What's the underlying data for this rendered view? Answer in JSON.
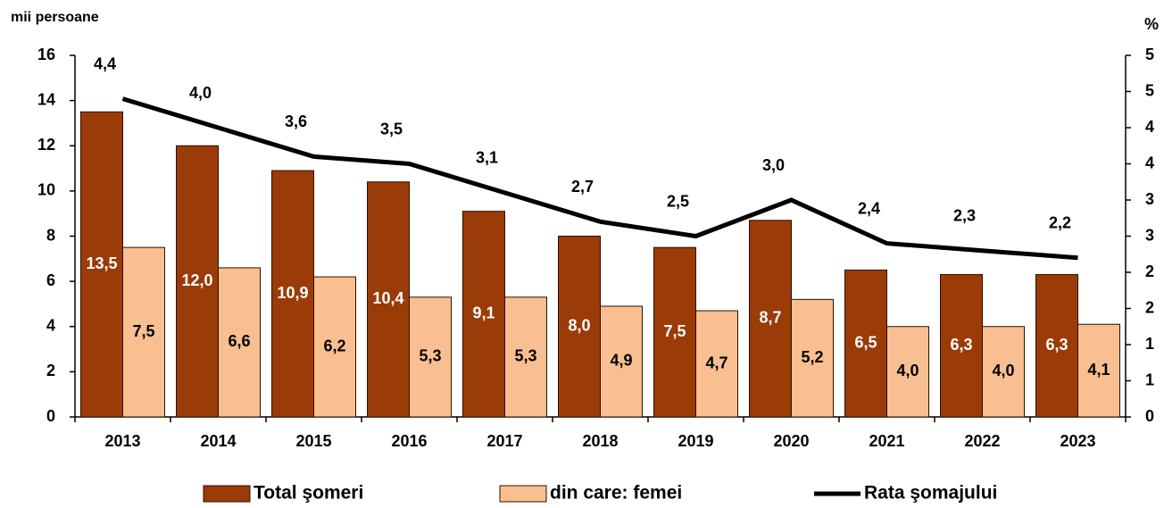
{
  "chart_data": {
    "type": "bar-line",
    "ylabel": "mii persoane",
    "y2label": "%",
    "categories": [
      "2013",
      "2014",
      "2015",
      "2016",
      "2017",
      "2018",
      "2019",
      "2020",
      "2021",
      "2022",
      "2023"
    ],
    "series": [
      {
        "name": "Total şomeri",
        "color": "#9a3b08",
        "type": "bar",
        "values": [
          13.5,
          12.0,
          10.9,
          10.4,
          9.1,
          8.0,
          7.5,
          8.7,
          6.5,
          6.3,
          6.3
        ],
        "value_labels": [
          "13,5",
          "12,0",
          "10,9",
          "10,4",
          "9,1",
          "8,0",
          "7,5",
          "8,7",
          "6,5",
          "6,3",
          "6,3"
        ]
      },
      {
        "name": "din care: femei",
        "color": "#f9bf90",
        "type": "bar",
        "values": [
          7.5,
          6.6,
          6.2,
          5.3,
          5.3,
          4.9,
          4.7,
          5.2,
          4.0,
          4.0,
          4.1
        ],
        "value_labels": [
          "7,5",
          "6,6",
          "6,2",
          "5,3",
          "5,3",
          "4,9",
          "4,7",
          "5,2",
          "4,0",
          "4,0",
          "4,1"
        ]
      },
      {
        "name": "Rata şomajului",
        "color": "#000000",
        "type": "line",
        "axis": "y2",
        "values": [
          4.4,
          4.0,
          3.6,
          3.5,
          3.1,
          2.7,
          2.5,
          3.0,
          2.4,
          2.3,
          2.2
        ],
        "value_labels": [
          "4,4",
          "4,0",
          "3,6",
          "3,5",
          "3,1",
          "2,7",
          "2,5",
          "3,0",
          "2,4",
          "2,3",
          "2,2"
        ]
      }
    ],
    "ylim": [
      0,
      16
    ],
    "yticks": [
      0,
      2,
      4,
      6,
      8,
      10,
      12,
      14,
      16
    ],
    "y2lim": [
      0,
      5
    ],
    "y2ticks": [
      0,
      {
        "value": 0.5,
        "label": "1"
      },
      1,
      {
        "value": 1.5,
        "label": "2"
      },
      2,
      {
        "value": 2.5,
        "label": "3"
      },
      3,
      {
        "value": 3.5,
        "label": "4"
      },
      4,
      {
        "value": 4.5,
        "label": "5"
      },
      5
    ],
    "legend": "bottom"
  }
}
